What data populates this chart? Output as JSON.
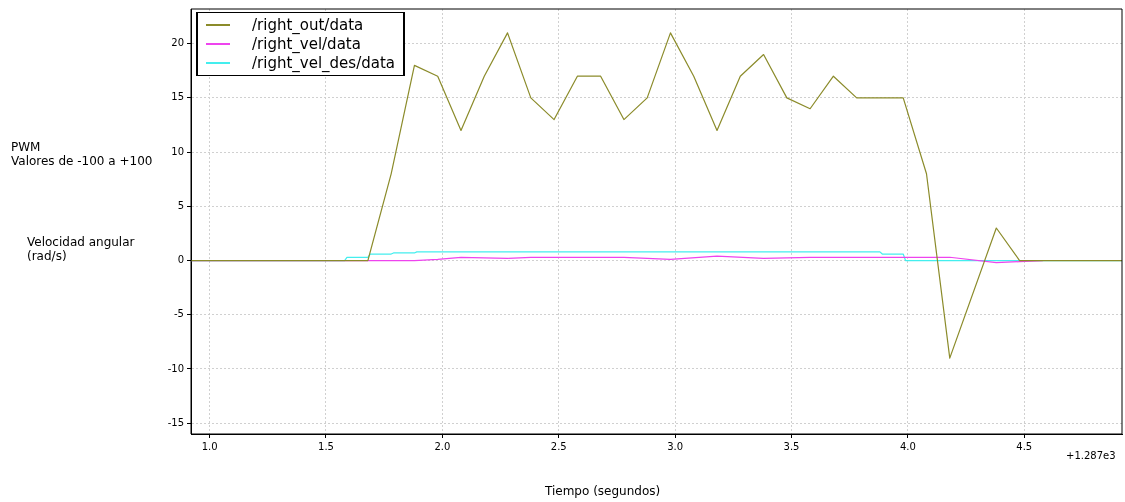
{
  "chart_data": {
    "type": "line",
    "xlabel": "Tiempo (segundos)",
    "ylabel": "PWM\nValores de -100 a +100",
    "annotations": [
      "Velocidad angular\n(rad/s)",
      "+1.287e3"
    ],
    "xlim": [
      0.92,
      4.92
    ],
    "xticks": [
      {
        "value": 1,
        "label": "1.0"
      },
      {
        "value": 1.5,
        "label": "1.5"
      },
      {
        "value": 2,
        "label": "2.0"
      },
      {
        "value": 2.5,
        "label": "2.5"
      },
      {
        "value": 3,
        "label": "3.0"
      },
      {
        "value": 3.5,
        "label": "3.5"
      },
      {
        "value": 4,
        "label": "4.0"
      },
      {
        "value": 4.5,
        "label": "4.5"
      }
    ],
    "ylim": [
      -16,
      23.2
    ],
    "yticks": [
      -15,
      -10,
      -5,
      0,
      5,
      10,
      15,
      20
    ],
    "grid": true,
    "legend": "top left",
    "line_style": "solid",
    "marker": "none",
    "series": [
      {
        "name": "/right_out/data",
        "color": "#8b8b2a",
        "x": [
          0.92,
          1.68,
          1.78,
          1.88,
          1.98,
          2.08,
          2.18,
          2.28,
          2.38,
          2.48,
          2.58,
          2.68,
          2.78,
          2.88,
          2.98,
          3.08,
          3.18,
          3.28,
          3.38,
          3.48,
          3.58,
          3.68,
          3.78,
          3.88,
          3.98,
          4.08,
          4.18,
          4.38,
          4.48,
          4.92
        ],
        "values": [
          0,
          0,
          8,
          18,
          17,
          12,
          17,
          21,
          15,
          13,
          17,
          17,
          13,
          15,
          21,
          17,
          12,
          17,
          19,
          15,
          14,
          17,
          15,
          15,
          15,
          8,
          -9,
          3,
          0,
          0
        ]
      },
      {
        "name": "/right_vel/data",
        "color": "#ee44ee",
        "x": [
          0.92,
          1.68,
          1.88,
          1.98,
          2.08,
          2.28,
          2.38,
          2.48,
          2.58,
          2.78,
          2.98,
          3.18,
          3.38,
          3.58,
          3.68,
          3.88,
          4.18,
          4.38,
          4.48,
          4.58
        ],
        "values": [
          0,
          0,
          0,
          0.1,
          0.3,
          0.2,
          0.3,
          0.3,
          0.3,
          0.3,
          0.1,
          0.4,
          0.2,
          0.3,
          0.3,
          0.3,
          0.3,
          -0.2,
          -0.1,
          0
        ]
      },
      {
        "name": "/right_vel_des/data",
        "color": "#44eeee",
        "x": [
          0.92,
          1.58,
          1.59,
          1.68,
          1.69,
          1.78,
          1.79,
          1.88,
          1.89,
          3.88,
          3.89,
          3.98,
          3.99,
          4.92
        ],
        "values": [
          0,
          0,
          0.3,
          0.3,
          0.6,
          0.6,
          0.7,
          0.7,
          0.8,
          0.8,
          0.6,
          0.6,
          0,
          0
        ]
      }
    ]
  }
}
